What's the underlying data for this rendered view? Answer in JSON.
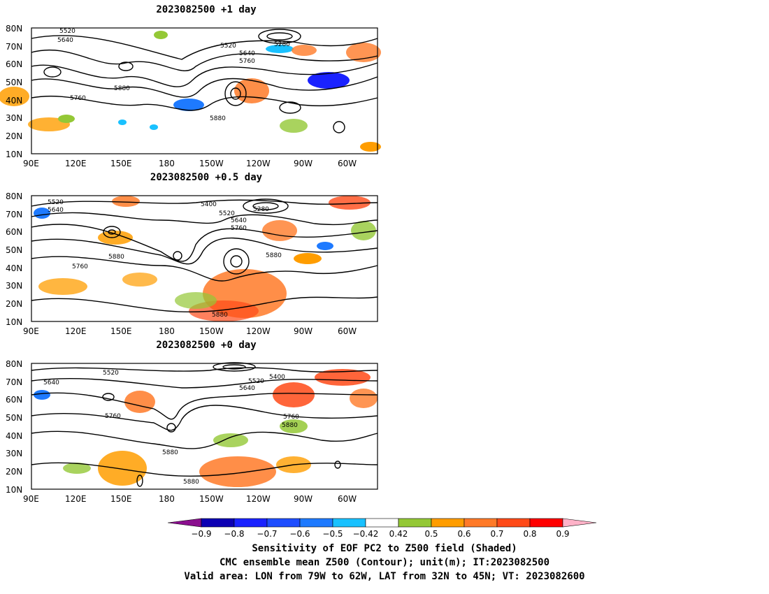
{
  "panels": [
    {
      "title": "2023082500  +1  day",
      "contour_labels": [
        "5520",
        "5640",
        "5520",
        "5640",
        "5760",
        "5280",
        "5760",
        "5880",
        "5880"
      ]
    },
    {
      "title": "2023082500  +0.5  day",
      "contour_labels": [
        "5520",
        "5640",
        "5400",
        "5520",
        "5280",
        "5640",
        "5760",
        "5760",
        "5880",
        "5880",
        "5880"
      ]
    },
    {
      "title": "2023082500  +0  day",
      "contour_labels": [
        "5520",
        "5640",
        "5400",
        "5520",
        "5640",
        "5760",
        "5760",
        "5880",
        "5880",
        "5880"
      ]
    }
  ],
  "axes": {
    "lat_labels": [
      "80N",
      "70N",
      "60N",
      "50N",
      "40N",
      "30N",
      "20N",
      "10N"
    ],
    "lon_labels": [
      "90E",
      "120E",
      "150E",
      "180",
      "150W",
      "120W",
      "90W",
      "60W"
    ]
  },
  "colorbar": {
    "tick_labels": [
      "−0.9",
      "−0.8",
      "−0.7",
      "−0.6",
      "−0.5",
      "−0.42",
      "0.42",
      "0.5",
      "0.6",
      "0.7",
      "0.8",
      "0.9"
    ],
    "colors": [
      "#8b0f8f",
      "#0c00b3",
      "#1a22ff",
      "#1e4dff",
      "#1e7aff",
      "#19c1ff",
      "#ffffff",
      "#94c836",
      "#ff9d00",
      "#ff7a28",
      "#ff4a18",
      "#ff0000",
      "#ffb2c8"
    ]
  },
  "caption": {
    "line1": "Sensitivity of EOF PC2 to Z500 field (Shaded)",
    "line2": "CMC ensemble mean Z500 (Contour); unit(m); IT:2023082500",
    "line3": "Valid area: LON from 79W to 62W, LAT from 32N to 45N; VT: 2023082600"
  }
}
